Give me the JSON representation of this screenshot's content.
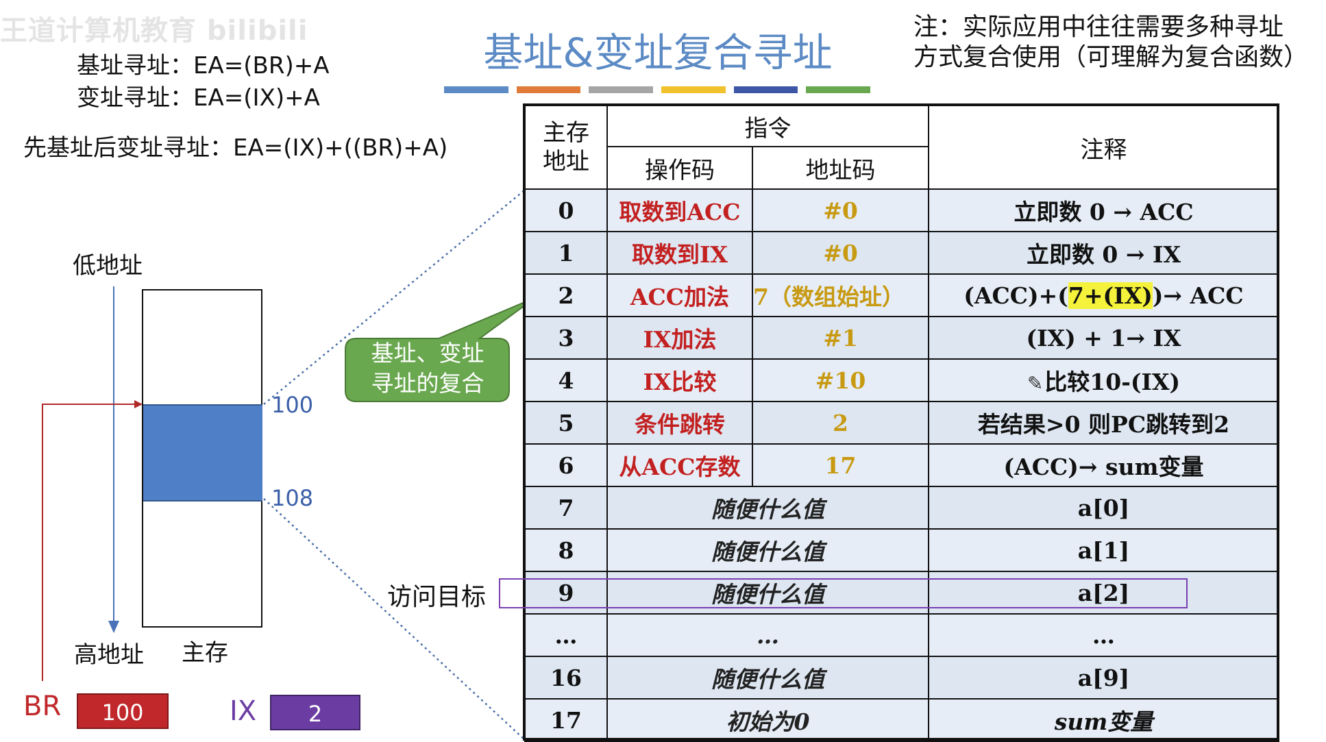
{
  "watermark": "王道计算机教育 bilibili",
  "title": "基址&变址复合寻址",
  "title_bar_colors": [
    "#5b8ac4",
    "#e07b39",
    "#a5a5a5",
    "#f2c12e",
    "#3d57a6",
    "#6aa84f"
  ],
  "note": {
    "line1": "注：实际应用中往往需要多种寻址",
    "line2": "方式复合使用（可理解为复合函数）"
  },
  "formulas": {
    "base": "基址寻址：EA=(BR)+A",
    "index": "变址寻址：EA=(IX)+A",
    "combined": "先基址后变址寻址：EA=(IX)+((BR)+A)"
  },
  "memory": {
    "low_addr": "低地址",
    "high_addr": "高地址",
    "label": "主存",
    "tick_start": "100",
    "tick_end": "108"
  },
  "registers": {
    "br_label": "BR",
    "br_value": "100",
    "ix_label": "IX",
    "ix_value": "2"
  },
  "callout": {
    "line1": "基址、变址",
    "line2": "寻址的复合"
  },
  "visit_target": "访问目标",
  "table": {
    "header": {
      "addr": "主存地址",
      "instr": "指令",
      "opcode": "操作码",
      "addrcode": "地址码",
      "note": "注释"
    },
    "rows": [
      {
        "addr": "0",
        "op": "取数到ACC",
        "ac": "#0",
        "note": "立即数 0 → ACC"
      },
      {
        "addr": "1",
        "op": "取数到IX",
        "ac": "#0",
        "note": "立即数 0 → IX"
      },
      {
        "addr": "2",
        "op": "ACC加法",
        "ac": "7（数组始址）",
        "note_pre": "(ACC)+(",
        "note_hl": "7+(IX)",
        "note_post": ")→ ACC"
      },
      {
        "addr": "3",
        "op": "IX加法",
        "ac": "#1",
        "note": "(IX) + 1→ IX"
      },
      {
        "addr": "4",
        "op": "IX比较",
        "ac": "#10",
        "note": "比较10-(IX)"
      },
      {
        "addr": "5",
        "op": "条件跳转",
        "ac": "2",
        "note": "若结果>0 则PC跳转到2"
      },
      {
        "addr": "6",
        "op": "从ACC存数",
        "ac": "17",
        "note": "(ACC)→ sum变量"
      },
      {
        "addr": "7",
        "any": "随便什么值",
        "note": "a[0]"
      },
      {
        "addr": "8",
        "any": "随便什么值",
        "note": "a[1]"
      },
      {
        "addr": "9",
        "any": "随便什么值",
        "note": "a[2]"
      },
      {
        "addr": "…",
        "any": "…",
        "note": "…"
      },
      {
        "addr": "16",
        "any": "随便什么值",
        "note": "a[9]"
      },
      {
        "addr": "17",
        "any": "初始为0",
        "note": "sum变量"
      }
    ]
  }
}
